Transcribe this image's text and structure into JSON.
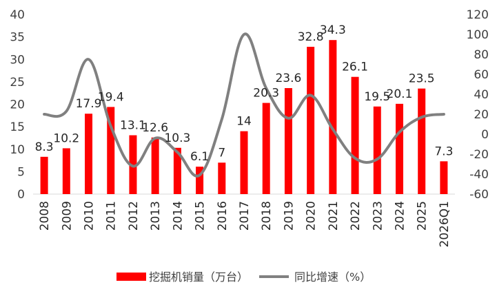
{
  "chart_data": {
    "type": "bar+line",
    "categories": [
      "2008",
      "2009",
      "2010",
      "2011",
      "2012",
      "2013",
      "2014",
      "2015",
      "2016",
      "2017",
      "2018",
      "2019",
      "2020",
      "2021",
      "2022",
      "2023",
      "2024",
      "2025",
      "2026Q1"
    ],
    "series": [
      {
        "name": "挖掘机销量（万台）",
        "type": "bar",
        "axis": "left",
        "color": "#ff0000",
        "values": [
          8.3,
          10.2,
          17.9,
          19.4,
          13.1,
          12.6,
          10.3,
          6.1,
          7,
          14,
          20.3,
          23.6,
          32.8,
          34.3,
          26.1,
          19.5,
          20.1,
          23.5,
          7.3
        ],
        "labels": [
          "8.3",
          "10.2",
          "17.9",
          "19.4",
          "13.1",
          "12.6",
          "10.3",
          "6.1",
          "7",
          "14",
          "20.3",
          "23.6",
          "32.8",
          "34.3",
          "26.1",
          "19.5",
          "20.1",
          "23.5",
          "7.3"
        ]
      },
      {
        "name": "同比增速（%）",
        "type": "line",
        "axis": "right",
        "color": "#808080",
        "values": [
          20,
          23,
          75,
          8,
          -32,
          -4,
          -18,
          -41,
          15,
          100,
          46,
          16,
          39,
          5,
          -24,
          -25,
          2,
          17,
          20
        ]
      }
    ],
    "left_axis": {
      "min": 0,
      "max": 40,
      "ticks": [
        "0",
        "5",
        "10",
        "15",
        "20",
        "25",
        "30",
        "35",
        "40"
      ]
    },
    "right_axis": {
      "min": -60,
      "max": 120,
      "ticks": [
        "-60",
        "-40",
        "-20",
        "0",
        "20",
        "40",
        "60",
        "80",
        "100",
        "120"
      ]
    },
    "grid": false,
    "legend_position": "bottom"
  },
  "colors": {
    "bar": "#ff0000",
    "line": "#808080",
    "axis": "#d9d9d9"
  }
}
